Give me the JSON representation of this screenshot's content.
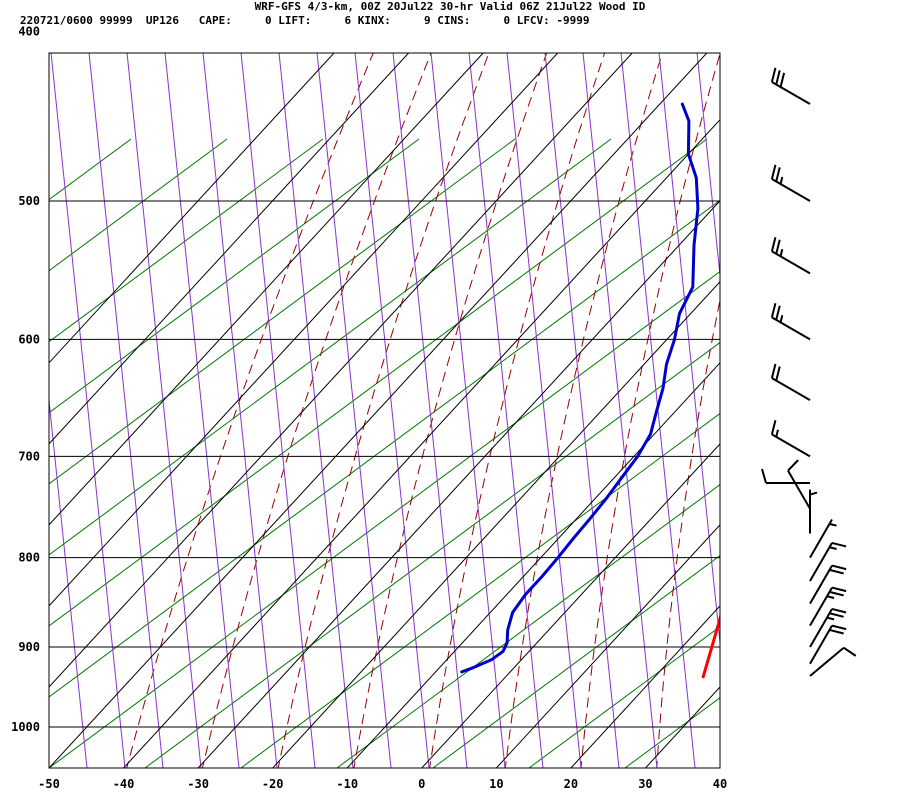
{
  "header": {
    "title": "WRF-GFS 4/3-km, 00Z 20Jul22 30-hr Valid 06Z 21Jul22 Wood ID",
    "indices": "220721/0600 99999  UP126   CAPE:     0 LIFT:     6 KINX:     9 CINS:     0 LFCV: -9999"
  },
  "chart_data": {
    "type": "line",
    "x_axis": {
      "ticks": [
        -50,
        -40,
        -30,
        -20,
        -10,
        0,
        10,
        20,
        30,
        40
      ],
      "range": [
        -50,
        40
      ]
    },
    "y_axis": {
      "ticks": [
        400,
        500,
        600,
        700,
        800,
        900,
        1000
      ],
      "range": [
        400,
        1050
      ],
      "scale": "log-pressure"
    },
    "grid": true,
    "colors": {
      "temperature": "#ff0000",
      "dewpoint": "#0000cc",
      "isotherm": "#000000",
      "dry_adiabat": "#990000",
      "moist_adiabat": "#8833cc",
      "mixing_ratio": "#007700"
    },
    "series": [
      {
        "values": [
          [
            30.5,
            930
          ],
          [
            31,
            925
          ],
          [
            30.3,
            910
          ],
          [
            29.8,
            895
          ],
          [
            28.5,
            870
          ],
          [
            27.5,
            855
          ],
          [
            26,
            840
          ],
          [
            23.5,
            820
          ],
          [
            20.5,
            800
          ],
          [
            18.5,
            785
          ],
          [
            16.5,
            770
          ],
          [
            14,
            750
          ],
          [
            12,
            735
          ],
          [
            8,
            700
          ],
          [
            4.5,
            670
          ],
          [
            2,
            650
          ],
          [
            -2,
            620
          ],
          [
            -4.5,
            600
          ],
          [
            -9,
            560
          ],
          [
            -11,
            540
          ],
          [
            -12.5,
            520
          ],
          [
            -14,
            500
          ],
          [
            -16.5,
            480
          ],
          [
            -19,
            460
          ],
          [
            -20.5,
            450
          ]
        ]
      },
      {
        "values": [
          [
            -6.5,
            930
          ],
          [
            -5.5,
            925
          ],
          [
            -4,
            915
          ],
          [
            -3.5,
            905
          ],
          [
            -4,
            895
          ],
          [
            -5.5,
            880
          ],
          [
            -7,
            860
          ],
          [
            -7.5,
            840
          ],
          [
            -7.5,
            820
          ],
          [
            -7.7,
            800
          ],
          [
            -8,
            780
          ],
          [
            -8.2,
            760
          ],
          [
            -8.5,
            740
          ],
          [
            -9,
            720
          ],
          [
            -9.5,
            700
          ],
          [
            -10.5,
            680
          ],
          [
            -12.5,
            660
          ],
          [
            -14.5,
            640
          ],
          [
            -17,
            620
          ],
          [
            -19,
            600
          ],
          [
            -21.5,
            580
          ],
          [
            -23,
            560
          ],
          [
            -28,
            530
          ],
          [
            -32,
            505
          ],
          [
            -36,
            485
          ],
          [
            -40,
            470
          ],
          [
            -44,
            450
          ],
          [
            -47,
            440
          ]
        ]
      }
    ],
    "wind_barbs": [
      {
        "pressure": 440,
        "direction": 300,
        "speed_kt": 30
      },
      {
        "pressure": 500,
        "direction": 300,
        "speed_kt": 25
      },
      {
        "pressure": 550,
        "direction": 300,
        "speed_kt": 25
      },
      {
        "pressure": 600,
        "direction": 300,
        "speed_kt": 25
      },
      {
        "pressure": 650,
        "direction": 300,
        "speed_kt": 20
      },
      {
        "pressure": 700,
        "direction": 300,
        "speed_kt": 15
      },
      {
        "pressure": 725,
        "direction": 270,
        "speed_kt": 10
      },
      {
        "pressure": 750,
        "direction": 330,
        "speed_kt": 10
      },
      {
        "pressure": 775,
        "direction": 0,
        "speed_kt": 5
      },
      {
        "pressure": 800,
        "direction": 30,
        "speed_kt": 5
      },
      {
        "pressure": 825,
        "direction": 30,
        "speed_kt": 15
      },
      {
        "pressure": 850,
        "direction": 30,
        "speed_kt": 20
      },
      {
        "pressure": 875,
        "direction": 30,
        "speed_kt": 25
      },
      {
        "pressure": 900,
        "direction": 30,
        "speed_kt": 25
      },
      {
        "pressure": 920,
        "direction": 30,
        "speed_kt": 20
      },
      {
        "pressure": 935,
        "direction": 50,
        "speed_kt": 10
      }
    ]
  }
}
